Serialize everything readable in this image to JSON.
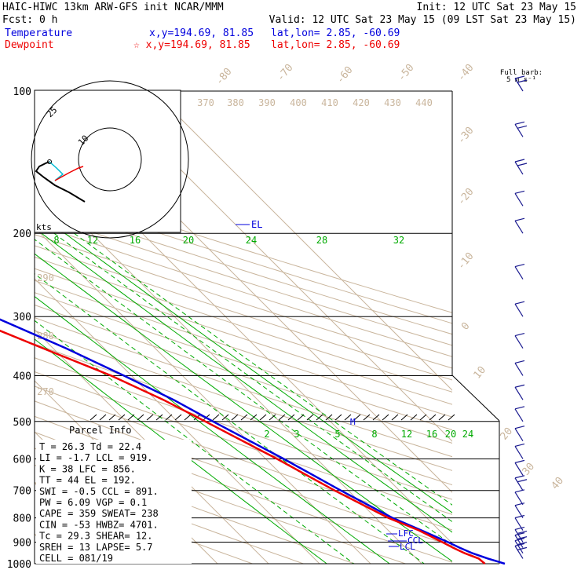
{
  "header": {
    "line1_left": "HAIC-HIWC 13km ARW-GFS init   NCAR/MMM",
    "line1_right": "Init: 12 UTC Sat 23 May 15",
    "line2_left": "Fcst:     0 h",
    "line2_right": "Valid: 12 UTC Sat 23 May 15 (09 LST Sat 23 May 15)",
    "temp_label": "Temperature",
    "temp_xy": "x,y=194.69, 81.85",
    "temp_latlon": "lat,lon=  2.85, -60.69",
    "dew_label": "Dewpoint",
    "dew_xy": "☆ x,y=194.69, 81.85",
    "dew_latlon": "lat,lon=  2.85, -60.69"
  },
  "colors": {
    "temperature": "#0000dd",
    "dewpoint": "#ee0000",
    "mixing_ratio": "#00aa00",
    "dry_adiabat": "#c9b59c",
    "grid": "#000000",
    "wind": "#1a1a8f",
    "hodo_cyan": "#00bcd4"
  },
  "barb_label": {
    "line1": "Full barb:",
    "line2": "5 m s⁻¹"
  },
  "hodograph": {
    "ring_labels": [
      "10",
      "25"
    ],
    "units": "kts"
  },
  "parcel": {
    "title": "Parcel Info",
    "rows": [
      "T  =    26.3  Td =  22.4",
      "LI =    -1.7  LCL =  919.",
      "K  =      38  LFC =  856.",
      "TT =      44  EL  =  192.",
      "SWI =   -0.5  CCL =  891.",
      "PW =    6.09  VGP =   0.1",
      "CAPE =   359  SWEAT=  238",
      "CIN =    -53  HWBZ= 4701.",
      "Tc =    29.3  SHEAR=  12.",
      "SREH =    13  LAPSE=  5.7",
      "CELL = 081/19"
    ]
  },
  "level_markers": {
    "el": "EL",
    "m": "M",
    "lfc": "LFC",
    "ccl": "CCL",
    "lcl": "LCL"
  },
  "chart_data": {
    "type": "line",
    "title": "",
    "y_axis": "pressure (hPa)",
    "pressure_ticks": [
      "100",
      "200",
      "300",
      "400",
      "500",
      "600",
      "700",
      "800",
      "900",
      "1000"
    ],
    "isotherm_labels": [
      "-80",
      "-70",
      "-60",
      "-50",
      "-40",
      "-30",
      "-20",
      "-10",
      "0",
      "10",
      "20",
      "30",
      "40"
    ],
    "theta_labels": [
      "370",
      "380",
      "390",
      "400",
      "410",
      "420",
      "430",
      "440",
      "290",
      "280",
      "270"
    ],
    "mixing_ratio_labels": [
      "8",
      "12",
      "16",
      "20",
      "24",
      "28",
      "32",
      "2",
      "3",
      "5",
      "8",
      "12",
      "16",
      "20",
      "24"
    ],
    "series": [
      {
        "name": "Temperature",
        "points": [
          {
            "p": 1000,
            "t": 26.3
          },
          {
            "p": 975,
            "t": 24.0
          },
          {
            "p": 950,
            "t": 22.0
          },
          {
            "p": 925,
            "t": 20.6
          },
          {
            "p": 900,
            "t": 19.4
          },
          {
            "p": 850,
            "t": 16.5
          },
          {
            "p": 800,
            "t": 13.3
          },
          {
            "p": 700,
            "t": 8.5
          },
          {
            "p": 600,
            "t": 3.5
          },
          {
            "p": 500,
            "t": -3.0
          },
          {
            "p": 450,
            "t": -6.5
          },
          {
            "p": 400,
            "t": -11.5
          },
          {
            "p": 350,
            "t": -17.5
          },
          {
            "p": 300,
            "t": -25.5
          },
          {
            "p": 250,
            "t": -35.5
          },
          {
            "p": 200,
            "t": -47.5
          },
          {
            "p": 175,
            "t": -55.0
          },
          {
            "p": 150,
            "t": -64.0
          },
          {
            "p": 125,
            "t": -74.5
          },
          {
            "p": 100,
            "t": -86.0
          }
        ]
      },
      {
        "name": "Dewpoint",
        "points": [
          {
            "p": 1000,
            "t": 22.4
          },
          {
            "p": 975,
            "t": 22.2
          },
          {
            "p": 950,
            "t": 20.5
          },
          {
            "p": 925,
            "t": 19.3
          },
          {
            "p": 900,
            "t": 18.3
          },
          {
            "p": 850,
            "t": 16.0
          },
          {
            "p": 800,
            "t": 12.5
          },
          {
            "p": 700,
            "t": 7.3
          },
          {
            "p": 600,
            "t": 2.2
          },
          {
            "p": 500,
            "t": -4.5
          },
          {
            "p": 450,
            "t": -8.5
          },
          {
            "p": 400,
            "t": -14.0
          },
          {
            "p": 350,
            "t": -22.0
          },
          {
            "p": 300,
            "t": -31.0
          },
          {
            "p": 250,
            "t": -42.5
          },
          {
            "p": 200,
            "t": -58.0
          },
          {
            "p": 175,
            "t": -68.0
          },
          {
            "p": 150,
            "t": -80.0
          },
          {
            "p": 125,
            "t": -91.0
          },
          {
            "p": 100,
            "t": -103.0
          }
        ]
      }
    ],
    "wind_profile": [
      {
        "p": 975,
        "barbs": 2
      },
      {
        "p": 950,
        "barbs": 2
      },
      {
        "p": 925,
        "barbs": 2
      },
      {
        "p": 900,
        "barbs": 2
      },
      {
        "p": 850,
        "barbs": 1
      },
      {
        "p": 800,
        "barbs": 1
      },
      {
        "p": 750,
        "barbs": 1
      },
      {
        "p": 700,
        "barbs": 2
      },
      {
        "p": 650,
        "barbs": 1
      },
      {
        "p": 600,
        "barbs": 1
      },
      {
        "p": 550,
        "barbs": 1
      },
      {
        "p": 500,
        "barbs": 1
      },
      {
        "p": 450,
        "barbs": 1
      },
      {
        "p": 400,
        "barbs": 1
      },
      {
        "p": 350,
        "barbs": 1
      },
      {
        "p": 300,
        "barbs": 1
      },
      {
        "p": 250,
        "barbs": 1
      },
      {
        "p": 200,
        "barbs": 1
      },
      {
        "p": 175,
        "barbs": 1
      },
      {
        "p": 150,
        "barbs": 2
      },
      {
        "p": 125,
        "barbs": 2
      },
      {
        "p": 100,
        "barbs": 2
      }
    ]
  }
}
